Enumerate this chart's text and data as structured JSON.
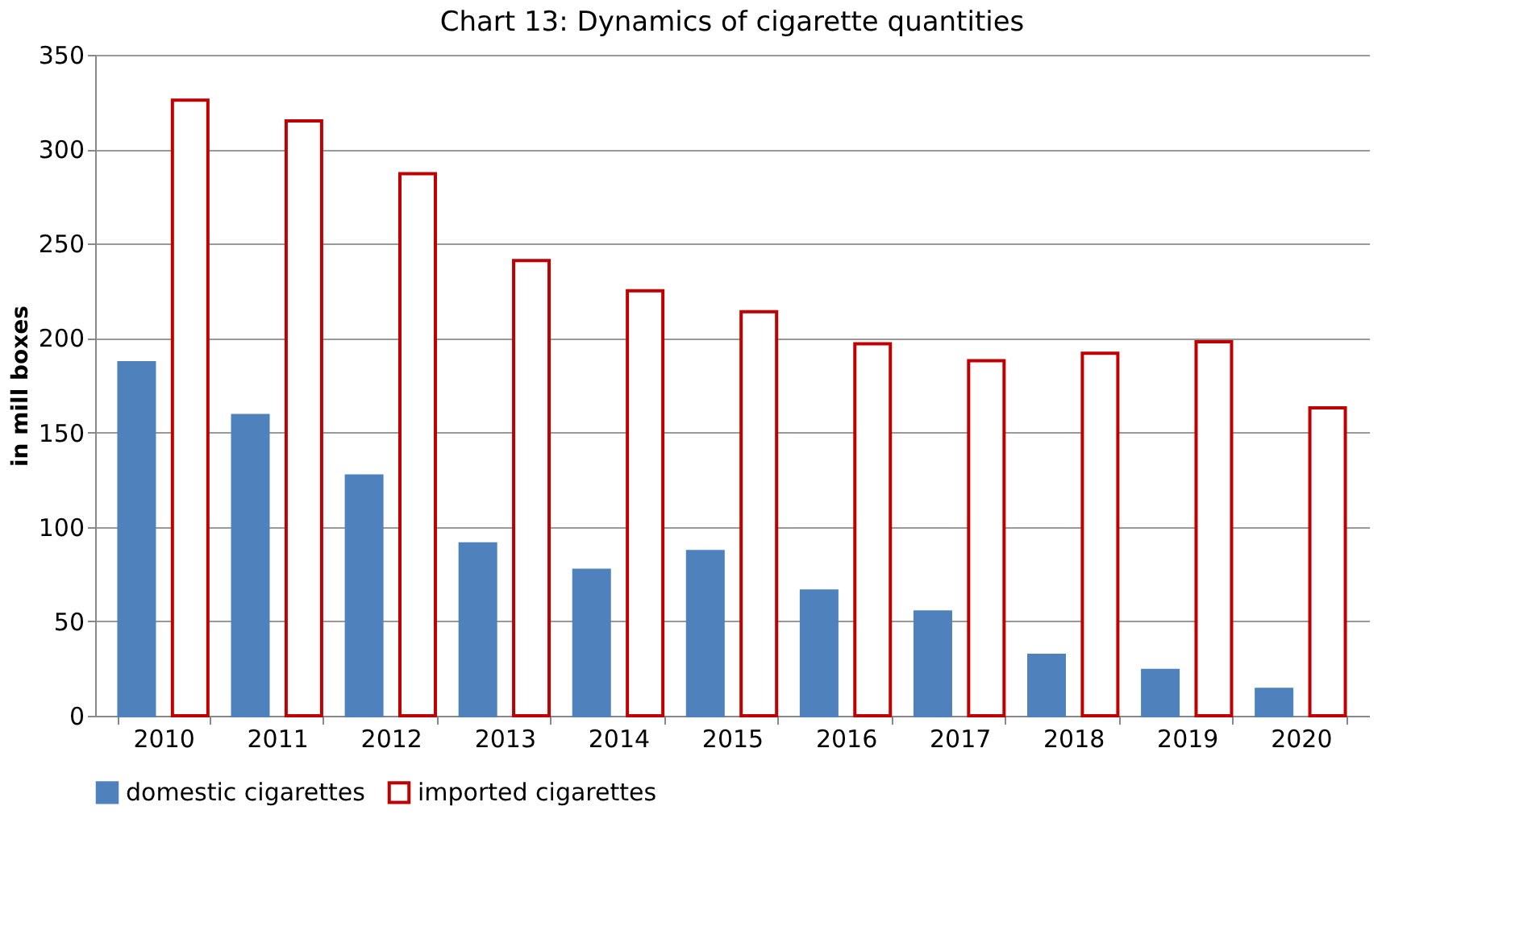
{
  "chart_data": {
    "type": "bar",
    "title": "Chart 13: Dynamics of cigarette quantities",
    "ylabel": "in mill boxes",
    "categories": [
      "2010",
      "2011",
      "2012",
      "2013",
      "2014",
      "2015",
      "2016",
      "2017",
      "2018",
      "2019",
      "2020"
    ],
    "series": [
      {
        "name": "domestic cigarettes",
        "color": "#4f81bd",
        "values": [
          187,
          159,
          127,
          91,
          77,
          87,
          66,
          55,
          32,
          24,
          14
        ]
      },
      {
        "name": "imported cigarettes",
        "color": "#c00000",
        "values": [
          326,
          315,
          287,
          241,
          225,
          214,
          197,
          188,
          192,
          198,
          163
        ]
      }
    ],
    "ylim": [
      0,
      350
    ],
    "yticks": [
      0,
      50,
      100,
      150,
      200,
      250,
      300,
      350
    ],
    "grid": "y",
    "legend": "bottom"
  }
}
